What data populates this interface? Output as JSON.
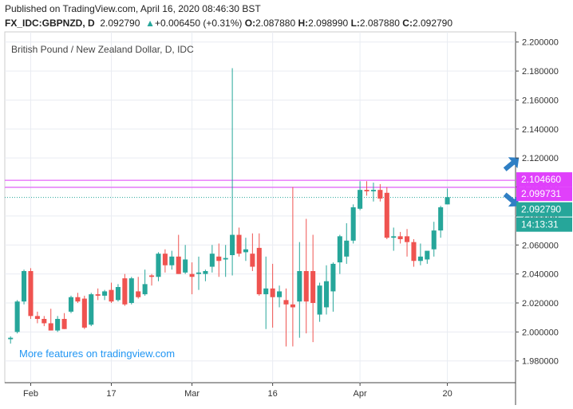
{
  "header": {
    "published": "Published on TradingView.com, April 16, 2020 08:46:30 BST",
    "symbol": "FX_IDC:GBPNZD, D",
    "last": "2.092790",
    "change_arrow": "▲",
    "change": "+0.006450 (+0.31%)",
    "o_label": "O:",
    "o": "2.087880",
    "h_label": "H:",
    "h": "2.098990",
    "l_label": "L:",
    "l": "2.087880",
    "c_label": "C:",
    "c": "2.092790"
  },
  "colors": {
    "up": "#26a69a",
    "down": "#ef5350",
    "level_line": "#e040fb",
    "arrow": "#2f7fc4",
    "grid": "#e9ecf2",
    "price_tag": "#26a69a"
  },
  "chart_data": {
    "type": "candlestick",
    "title": "British Pound / New Zealand Dollar, D, IDC",
    "watermark": "More features on tradingview.com",
    "ylim": [
      1.965,
      2.207
    ],
    "y_ticks": [
      "2.200000",
      "2.180000",
      "2.160000",
      "2.140000",
      "2.120000",
      "2.100000",
      "2.080000",
      "2.060000",
      "2.040000",
      "2.020000",
      "2.000000",
      "1.980000"
    ],
    "x_ticks": [
      {
        "label": "Feb",
        "index": 3
      },
      {
        "label": "17",
        "index": 15
      },
      {
        "label": "Mar",
        "index": 27
      },
      {
        "label": "16",
        "index": 39
      },
      {
        "label": "Apr",
        "index": 52
      },
      {
        "label": "20",
        "index": 65
      }
    ],
    "x_slots": 76,
    "candles": [
      {
        "o": 1.995,
        "h": 1.997,
        "l": 1.992,
        "c": 1.996
      },
      {
        "o": 2.0,
        "h": 2.022,
        "l": 1.999,
        "c": 2.021
      },
      {
        "o": 2.021,
        "h": 2.043,
        "l": 2.019,
        "c": 2.042
      },
      {
        "o": 2.042,
        "h": 2.044,
        "l": 2.009,
        "c": 2.011
      },
      {
        "o": 2.011,
        "h": 2.014,
        "l": 2.006,
        "c": 2.009
      },
      {
        "o": 2.009,
        "h": 2.011,
        "l": 2.004,
        "c": 2.006
      },
      {
        "o": 2.006,
        "h": 2.016,
        "l": 2.001,
        "c": 2.001
      },
      {
        "o": 2.001,
        "h": 2.011,
        "l": 2.0,
        "c": 2.009
      },
      {
        "o": 2.009,
        "h": 2.013,
        "l": 2.002,
        "c": 2.002
      },
      {
        "o": 2.014,
        "h": 2.025,
        "l": 2.013,
        "c": 2.024
      },
      {
        "o": 2.024,
        "h": 2.027,
        "l": 2.02,
        "c": 2.021
      },
      {
        "o": 2.023,
        "h": 2.025,
        "l": 2.002,
        "c": 2.003
      },
      {
        "o": 2.005,
        "h": 2.027,
        "l": 2.004,
        "c": 2.026
      },
      {
        "o": 2.026,
        "h": 2.03,
        "l": 2.022,
        "c": 2.025
      },
      {
        "o": 2.025,
        "h": 2.029,
        "l": 2.022,
        "c": 2.028
      },
      {
        "o": 2.029,
        "h": 2.034,
        "l": 2.02,
        "c": 2.021
      },
      {
        "o": 2.022,
        "h": 2.033,
        "l": 2.021,
        "c": 2.031
      },
      {
        "o": 2.037,
        "h": 2.04,
        "l": 2.018,
        "c": 2.019
      },
      {
        "o": 2.02,
        "h": 2.038,
        "l": 2.019,
        "c": 2.037
      },
      {
        "o": 2.028,
        "h": 2.038,
        "l": 2.023,
        "c": 2.024
      },
      {
        "o": 2.026,
        "h": 2.043,
        "l": 2.025,
        "c": 2.033
      },
      {
        "o": 2.039,
        "h": 2.04,
        "l": 2.032,
        "c": 2.038
      },
      {
        "o": 2.038,
        "h": 2.055,
        "l": 2.035,
        "c": 2.054
      },
      {
        "o": 2.054,
        "h": 2.057,
        "l": 2.041,
        "c": 2.046
      },
      {
        "o": 2.046,
        "h": 2.056,
        "l": 2.043,
        "c": 2.052
      },
      {
        "o": 2.052,
        "h": 2.067,
        "l": 2.04,
        "c": 2.04
      },
      {
        "o": 2.041,
        "h": 2.06,
        "l": 2.04,
        "c": 2.05
      },
      {
        "o": 2.04,
        "h": 2.048,
        "l": 2.026,
        "c": 2.038
      },
      {
        "o": 2.04,
        "h": 2.052,
        "l": 2.029,
        "c": 2.041
      },
      {
        "o": 2.04,
        "h": 2.043,
        "l": 2.035,
        "c": 2.042
      },
      {
        "o": 2.045,
        "h": 2.06,
        "l": 2.041,
        "c": 2.054
      },
      {
        "o": 2.052,
        "h": 2.061,
        "l": 2.038,
        "c": 2.049
      },
      {
        "o": 2.05,
        "h": 2.06,
        "l": 2.038,
        "c": 2.051
      },
      {
        "o": 2.053,
        "h": 2.182,
        "l": 2.039,
        "c": 2.067
      },
      {
        "o": 2.067,
        "h": 2.072,
        "l": 2.052,
        "c": 2.054
      },
      {
        "o": 2.055,
        "h": 2.065,
        "l": 2.049,
        "c": 2.057
      },
      {
        "o": 2.054,
        "h": 2.068,
        "l": 2.042,
        "c": 2.045
      },
      {
        "o": 2.058,
        "h": 2.068,
        "l": 2.025,
        "c": 2.026
      },
      {
        "o": 2.026,
        "h": 2.052,
        "l": 2.002,
        "c": 2.03
      },
      {
        "o": 2.03,
        "h": 2.047,
        "l": 2.003,
        "c": 2.024
      },
      {
        "o": 2.024,
        "h": 2.032,
        "l": 2.017,
        "c": 2.028
      },
      {
        "o": 2.022,
        "h": 2.03,
        "l": 1.99,
        "c": 2.019
      },
      {
        "o": 2.019,
        "h": 2.1,
        "l": 1.99,
        "c": 2.017
      },
      {
        "o": 2.021,
        "h": 2.062,
        "l": 1.996,
        "c": 2.042
      },
      {
        "o": 2.042,
        "h": 2.078,
        "l": 1.999,
        "c": 2.021
      },
      {
        "o": 2.042,
        "h": 2.067,
        "l": 1.993,
        "c": 2.02
      },
      {
        "o": 2.012,
        "h": 2.034,
        "l": 2.007,
        "c": 2.032
      },
      {
        "o": 2.017,
        "h": 2.046,
        "l": 2.012,
        "c": 2.035
      },
      {
        "o": 2.028,
        "h": 2.048,
        "l": 2.014,
        "c": 2.047
      },
      {
        "o": 2.048,
        "h": 2.067,
        "l": 2.04,
        "c": 2.066
      },
      {
        "o": 2.052,
        "h": 2.075,
        "l": 2.047,
        "c": 2.063
      },
      {
        "o": 2.063,
        "h": 2.088,
        "l": 2.061,
        "c": 2.086
      },
      {
        "o": 2.085,
        "h": 2.104,
        "l": 2.084,
        "c": 2.098
      },
      {
        "o": 2.098,
        "h": 2.104,
        "l": 2.094,
        "c": 2.097
      },
      {
        "o": 2.097,
        "h": 2.103,
        "l": 2.09,
        "c": 2.098
      },
      {
        "o": 2.098,
        "h": 2.102,
        "l": 2.09,
        "c": 2.092
      },
      {
        "o": 2.096,
        "h": 2.1,
        "l": 2.064,
        "c": 2.065
      },
      {
        "o": 2.065,
        "h": 2.072,
        "l": 2.056,
        "c": 2.066
      },
      {
        "o": 2.066,
        "h": 2.069,
        "l": 2.061,
        "c": 2.064
      },
      {
        "o": 2.066,
        "h": 2.071,
        "l": 2.052,
        "c": 2.062
      },
      {
        "o": 2.062,
        "h": 2.064,
        "l": 2.045,
        "c": 2.049
      },
      {
        "o": 2.049,
        "h": 2.061,
        "l": 2.046,
        "c": 2.052
      },
      {
        "o": 2.05,
        "h": 2.055,
        "l": 2.047,
        "c": 2.056
      },
      {
        "o": 2.057,
        "h": 2.076,
        "l": 2.052,
        "c": 2.07
      },
      {
        "o": 2.07,
        "h": 2.087,
        "l": 2.065,
        "c": 2.086
      },
      {
        "o": 2.088,
        "h": 2.099,
        "l": 2.088,
        "c": 2.093
      }
    ],
    "levels": [
      {
        "value": 2.10466,
        "label": "2.104660",
        "style": "solid"
      },
      {
        "value": 2.099731,
        "label": "2.099731",
        "style": "solid"
      },
      {
        "value": 2.09279,
        "label": "2.092790",
        "style": "dotted"
      }
    ],
    "countdown": "14:13:31",
    "arrows": [
      {
        "index": 71,
        "value": 2.116,
        "direction": "up"
      },
      {
        "index": 71,
        "value": 2.091,
        "direction": "down"
      }
    ]
  }
}
